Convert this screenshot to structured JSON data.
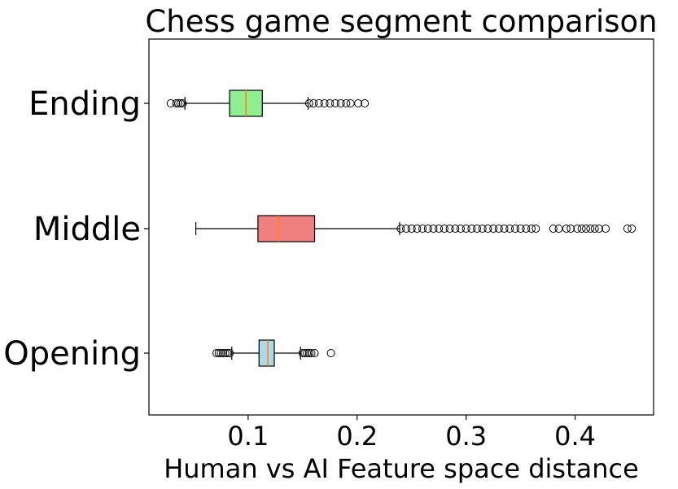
{
  "chart_data": {
    "type": "boxplot",
    "orientation": "horizontal",
    "title": "Chess game segment comparison",
    "xlabel": "Human vs AI Feature space distance",
    "ylabel": "",
    "xlim": [
      0.009,
      0.472
    ],
    "xticks": [
      0.1,
      0.2,
      0.3,
      0.4
    ],
    "xtick_labels": [
      "0.1",
      "0.2",
      "0.3",
      "0.4"
    ],
    "categories": [
      "Opening",
      "Middle",
      "Ending"
    ],
    "series": [
      {
        "category": "Opening",
        "whisker_low": 0.085,
        "q1": 0.11,
        "median": 0.118,
        "q3": 0.124,
        "whisker_high": 0.148,
        "color": "#add8e6",
        "outliers": [
          0.071,
          0.073,
          0.075,
          0.077,
          0.079,
          0.081,
          0.083,
          0.15,
          0.152,
          0.154,
          0.156,
          0.158,
          0.161,
          0.176
        ]
      },
      {
        "category": "Middle",
        "whisker_low": 0.052,
        "q1": 0.109,
        "median": 0.128,
        "q3": 0.161,
        "whisker_high": 0.239,
        "color": "#f08080",
        "outliers": [
          0.24,
          0.245,
          0.25,
          0.255,
          0.26,
          0.265,
          0.27,
          0.275,
          0.28,
          0.285,
          0.29,
          0.295,
          0.3,
          0.305,
          0.31,
          0.315,
          0.32,
          0.325,
          0.33,
          0.335,
          0.34,
          0.345,
          0.35,
          0.355,
          0.36,
          0.364,
          0.38,
          0.385,
          0.392,
          0.396,
          0.402,
          0.406,
          0.41,
          0.414,
          0.418,
          0.422,
          0.428,
          0.448,
          0.452
        ]
      },
      {
        "category": "Ending",
        "whisker_low": 0.042,
        "q1": 0.083,
        "median": 0.098,
        "q3": 0.113,
        "whisker_high": 0.155,
        "color": "#90ee90",
        "outliers": [
          0.029,
          0.034,
          0.036,
          0.038,
          0.04,
          0.156,
          0.16,
          0.165,
          0.17,
          0.175,
          0.18,
          0.185,
          0.19,
          0.194,
          0.201,
          0.207
        ]
      }
    ],
    "median_color": "#ff7f0e",
    "grid": false,
    "legend": "none"
  }
}
